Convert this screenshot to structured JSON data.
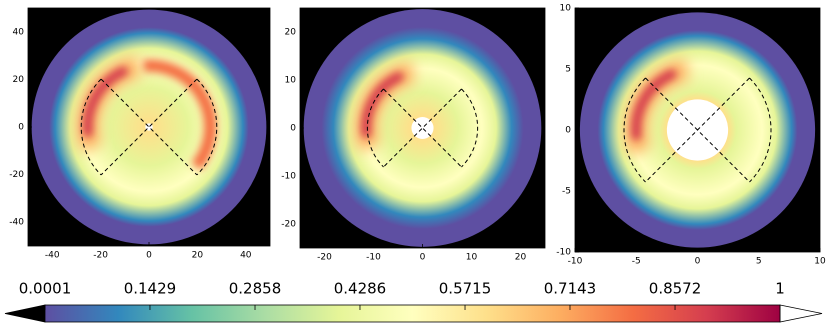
{
  "chart_data": [
    {
      "type": "heatmap",
      "xlim": [
        -50,
        50
      ],
      "ylim": [
        -50,
        50
      ],
      "xticks": [
        -40,
        -20,
        0,
        20,
        40
      ],
      "yticks": [
        -40,
        -20,
        0,
        20,
        40
      ]
    },
    {
      "type": "heatmap",
      "xlim": [
        -25,
        25
      ],
      "ylim": [
        -25,
        25
      ],
      "xticks": [
        -20,
        -10,
        0,
        10,
        20
      ],
      "yticks": [
        -20,
        -10,
        0,
        10,
        20
      ]
    },
    {
      "type": "heatmap",
      "xlim": [
        -10,
        10
      ],
      "ylim": [
        -10,
        10
      ],
      "xticks": [
        -10,
        -5,
        0,
        5,
        10
      ],
      "yticks": [
        -10,
        -5,
        0,
        5,
        10
      ]
    },
    {
      "type": "colorbar",
      "xlim": [
        0.0001,
        1
      ],
      "xticks": [
        0.0001,
        0.1429,
        0.2858,
        0.4286,
        0.5715,
        0.7143,
        0.8572,
        1
      ],
      "colormap": [
        "#5e4fa2",
        "#3288bd",
        "#66c2a5",
        "#abdda4",
        "#e6f598",
        "#ffffbf",
        "#fee08b",
        "#fdae61",
        "#f46d43",
        "#d53e4f",
        "#9e0142"
      ],
      "extend_colors": [
        "#000000",
        "#ffffff"
      ]
    }
  ]
}
